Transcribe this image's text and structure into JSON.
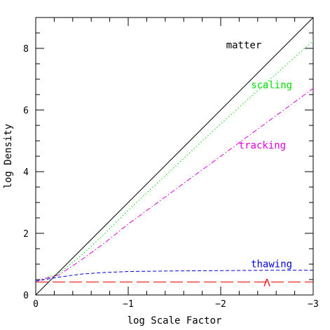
{
  "chart_data": {
    "type": "line",
    "title": "",
    "xlabel": "log Scale Factor",
    "ylabel": "log Density",
    "xlim": [
      0,
      -3
    ],
    "ylim": [
      0,
      9
    ],
    "x_ticks": [
      0,
      -1,
      -2,
      -3
    ],
    "x_tick_labels": [
      "0",
      "−1",
      "−2",
      "−3"
    ],
    "y_ticks": [
      0,
      2,
      4,
      6,
      8
    ],
    "y_tick_labels": [
      "0",
      "2",
      "4",
      "6",
      "8"
    ],
    "grid": false,
    "series": [
      {
        "name": "matter",
        "color": "#000000",
        "dash": "solid",
        "label_pos": [
          -2.25,
          8.0
        ],
        "x": [
          0,
          -0.5,
          -1,
          -1.5,
          -2,
          -2.5,
          -3
        ],
        "y": [
          0.0,
          1.5,
          3.0,
          4.5,
          6.0,
          7.5,
          9.0
        ]
      },
      {
        "name": "scaling",
        "color": "#00dd00",
        "dash": "dotted",
        "label_pos": [
          -2.55,
          6.7
        ],
        "x": [
          0,
          -0.25,
          -0.5,
          -0.75,
          -1,
          -1.5,
          -2,
          -2.5,
          -3
        ],
        "y": [
          0.45,
          0.7,
          1.3,
          2.0,
          2.75,
          4.15,
          5.55,
          6.9,
          8.25
        ]
      },
      {
        "name": "tracking",
        "color": "#dd00dd",
        "dash": "dashdot",
        "label_pos": [
          -2.45,
          4.75
        ],
        "x": [
          0,
          -0.25,
          -0.5,
          -0.75,
          -1,
          -1.5,
          -2,
          -2.5,
          -3
        ],
        "y": [
          0.45,
          0.65,
          1.15,
          1.7,
          2.3,
          3.4,
          4.5,
          5.6,
          6.7
        ]
      },
      {
        "name": "thawing",
        "color": "#0000dd",
        "dash": "dashed",
        "label_pos": [
          -2.55,
          0.9
        ],
        "x": [
          0,
          -0.25,
          -0.5,
          -0.75,
          -1,
          -1.5,
          -2,
          -2.5,
          -3
        ],
        "y": [
          0.45,
          0.58,
          0.68,
          0.73,
          0.76,
          0.78,
          0.79,
          0.8,
          0.8
        ]
      },
      {
        "name": "Λ",
        "color": "#ee0000",
        "dash": "longdash",
        "label_pos": [
          -2.5,
          0.28
        ],
        "x": [
          0,
          -3
        ],
        "y": [
          0.42,
          0.42
        ]
      }
    ]
  }
}
